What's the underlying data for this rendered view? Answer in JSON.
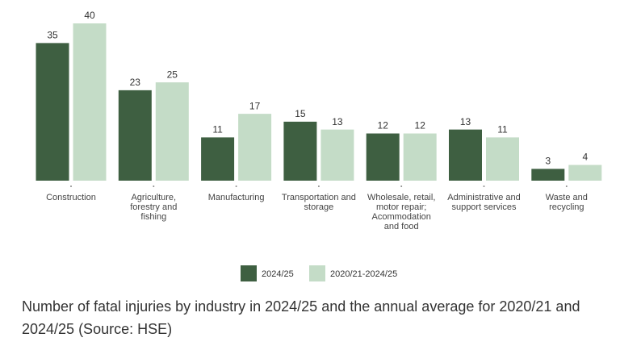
{
  "chart_data": {
    "type": "grouped-bar",
    "categories": [
      "Construction",
      "Agriculture, forestry and fishing",
      "Manufacturing",
      "Transportation and storage",
      "Wholesale, retail, motor repair; Acommodation and food",
      "Administrative and support services",
      "Waste and recycling"
    ],
    "series": [
      {
        "name": "2024/25",
        "color": "#3e5f41",
        "values": [
          35,
          23,
          11,
          15,
          12,
          13,
          3
        ]
      },
      {
        "name": "2020/21-2024/25",
        "color": "#c4dcc7",
        "values": [
          40,
          25,
          17,
          13,
          12,
          11,
          4
        ]
      }
    ],
    "legend": "bottom",
    "caption": "Number of fatal injuries by industry in 2024/25 and the annual average for 2020/21 and 2024/25 (Source: HSE)"
  }
}
